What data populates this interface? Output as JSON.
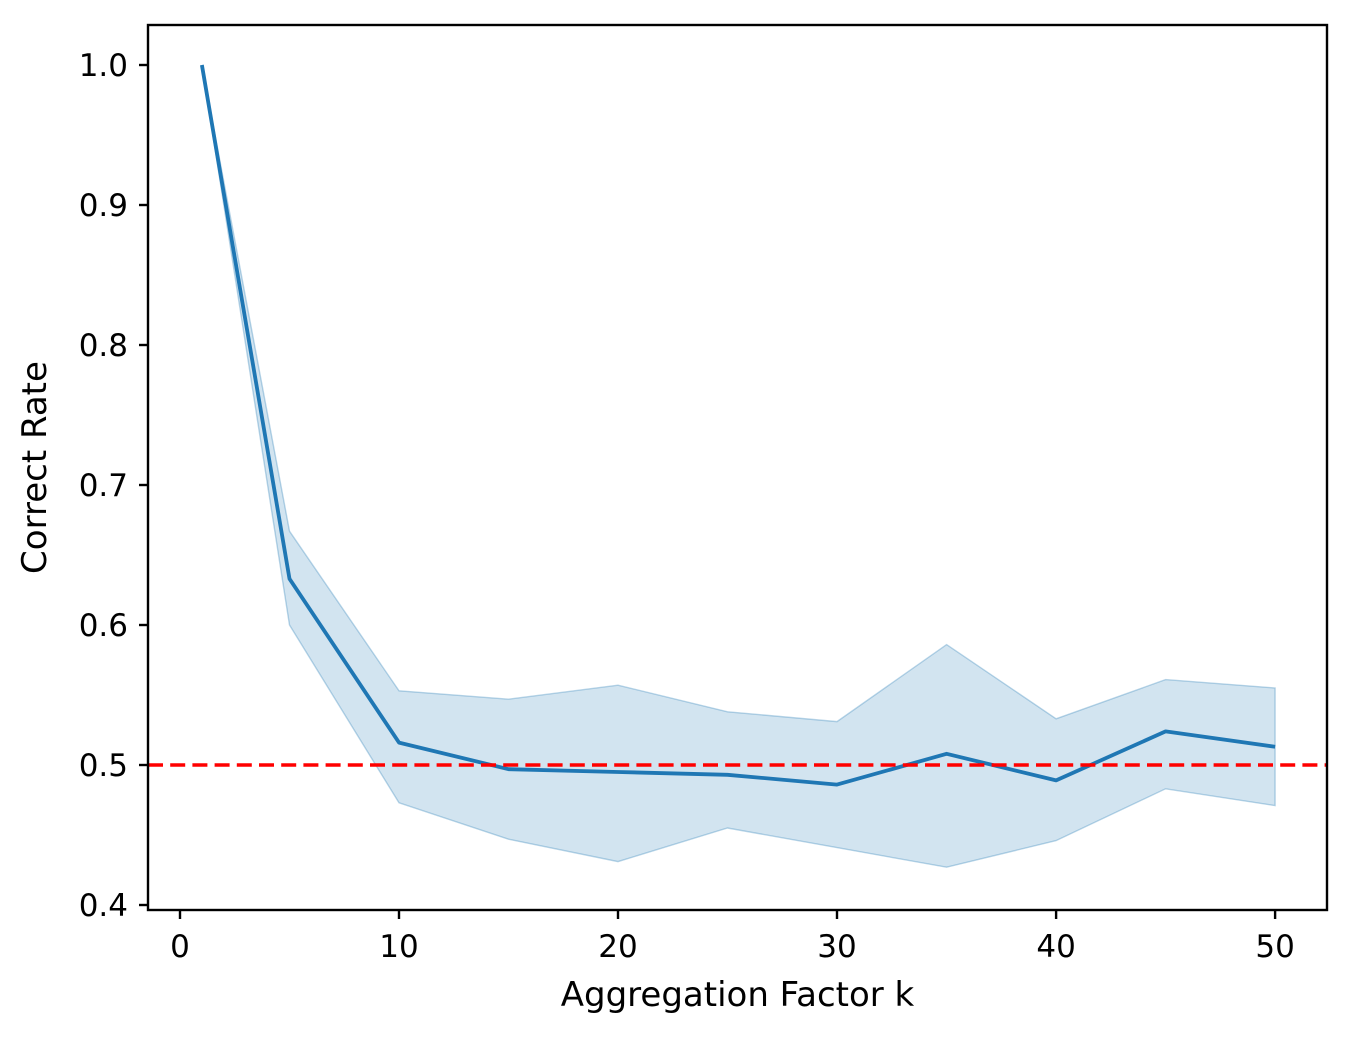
{
  "chart_data": {
    "type": "line",
    "title": "",
    "xlabel": "Aggregation Factor k",
    "ylabel": "Correct Rate",
    "x": [
      1,
      5,
      10,
      15,
      20,
      25,
      30,
      35,
      40,
      45,
      50
    ],
    "series": [
      {
        "name": "mean-correct-rate",
        "values": [
          1.0,
          0.633,
          0.516,
          0.497,
          0.495,
          0.493,
          0.486,
          0.508,
          0.489,
          0.524,
          0.513
        ]
      }
    ],
    "band": {
      "name": "confidence-interval",
      "upper": [
        1.0,
        0.667,
        0.553,
        0.547,
        0.557,
        0.538,
        0.531,
        0.586,
        0.533,
        0.561,
        0.555
      ],
      "lower": [
        1.0,
        0.6,
        0.473,
        0.447,
        0.431,
        0.455,
        0.441,
        0.427,
        0.446,
        0.483,
        0.471
      ]
    },
    "reference_line": {
      "y": 0.5,
      "style": "dashed",
      "color": "#ff0000"
    },
    "x_ticks": [
      0,
      10,
      20,
      30,
      40,
      50
    ],
    "x_tick_labels": [
      "0",
      "10",
      "20",
      "30",
      "40",
      "50"
    ],
    "y_ticks": [
      0.4,
      0.5,
      0.6,
      0.7,
      0.8,
      0.9,
      1.0
    ],
    "y_tick_labels": [
      "0.4",
      "0.5",
      "0.6",
      "0.7",
      "0.8",
      "0.9",
      "1.0"
    ],
    "xlim": [
      -1.46,
      52.37
    ],
    "ylim": [
      0.3964,
      1.0286
    ],
    "grid": false,
    "legend": "none",
    "colors": {
      "line": "#1f77b4",
      "band": "#1f77b4",
      "reference": "#ff0000",
      "text": "#000000",
      "spine": "#000000"
    }
  }
}
